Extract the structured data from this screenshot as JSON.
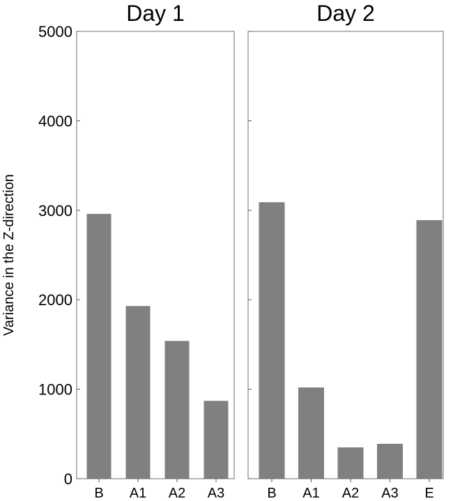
{
  "chart_data": {
    "type": "bar",
    "ylabel": "Variance in the Z-direction",
    "ylim": [
      0,
      5000
    ],
    "yticks": [
      0,
      1000,
      2000,
      3000,
      4000,
      5000
    ],
    "bar_color": "#808080",
    "grid": false,
    "panels": [
      {
        "title": "Day 1",
        "categories": [
          "B",
          "A1",
          "A2",
          "A3"
        ],
        "values": [
          2960,
          1930,
          1540,
          870
        ]
      },
      {
        "title": "Day 2",
        "categories": [
          "B",
          "A1",
          "A2",
          "A3",
          "E"
        ],
        "values": [
          3090,
          1020,
          350,
          390,
          2890
        ]
      }
    ]
  }
}
